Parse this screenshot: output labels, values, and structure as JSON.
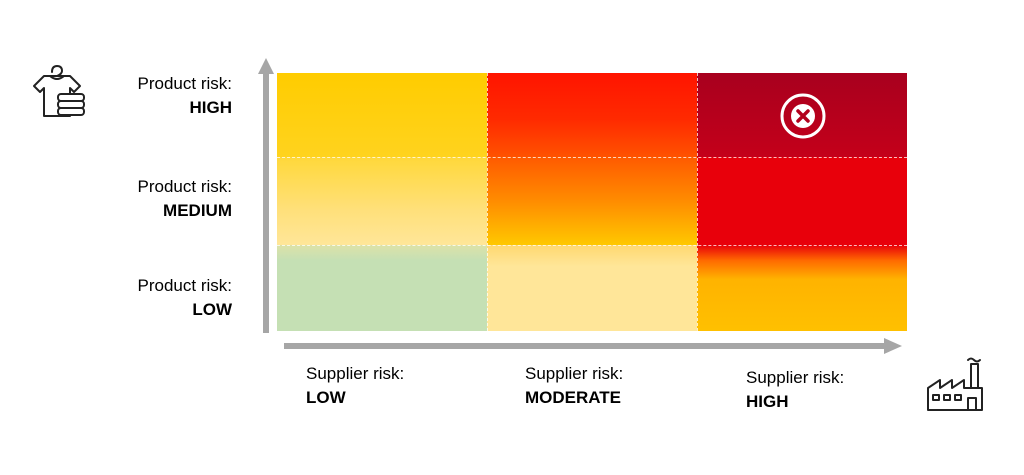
{
  "matrix": {
    "rows": [
      {
        "label": "Product risk:",
        "level": "HIGH"
      },
      {
        "label": "Product risk:",
        "level": "MEDIUM"
      },
      {
        "label": "Product risk:",
        "level": "LOW"
      }
    ],
    "columns": [
      {
        "label": "Supplier risk:",
        "level": "LOW"
      },
      {
        "label": "Supplier risk:",
        "level": "MODERATE"
      },
      {
        "label": "Supplier risk:",
        "level": "HIGH"
      }
    ],
    "colors": {
      "yellow": "#FFCC00",
      "orange": "#FF8C00",
      "red": "#FF1400",
      "dark_red": "#A8001E",
      "light_yellow": "#FFE699",
      "light_green": "#C5E0B4",
      "amber": "#FFC000",
      "axis_gray": "#A6A6A6"
    }
  },
  "icons": {
    "product": "clothing-icon",
    "supplier": "factory-icon",
    "reject": "reject-x-icon"
  }
}
